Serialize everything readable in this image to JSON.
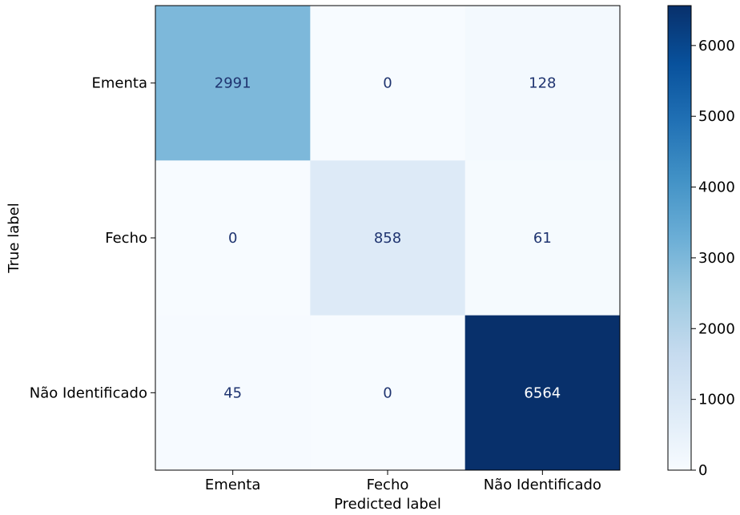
{
  "chart_data": {
    "type": "heatmap",
    "x_categories": [
      "Ementa",
      "Fecho",
      "Não Identificado"
    ],
    "y_categories": [
      "Ementa",
      "Fecho",
      "Não Identificado"
    ],
    "matrix": [
      [
        2991,
        0,
        128
      ],
      [
        0,
        858,
        61
      ],
      [
        45,
        0,
        6564
      ]
    ],
    "cell_labels": [
      [
        "2991",
        "0",
        "128"
      ],
      [
        "0",
        "858",
        "61"
      ],
      [
        "45",
        "0",
        "6564"
      ]
    ],
    "title": "",
    "xlabel": "Predicted label",
    "ylabel": "True label",
    "colormap": "Blues",
    "colorbar": {
      "range": [
        0,
        6564
      ],
      "ticks": [
        0,
        1000,
        2000,
        3000,
        4000,
        5000,
        6000
      ],
      "tick_labels": [
        "0",
        "1000",
        "2000",
        "3000",
        "4000",
        "5000",
        "6000"
      ]
    },
    "colors": {
      "text_dark_cell": "#ffffff",
      "text_light_cell": "#1f3470",
      "axis": "#000000"
    }
  }
}
